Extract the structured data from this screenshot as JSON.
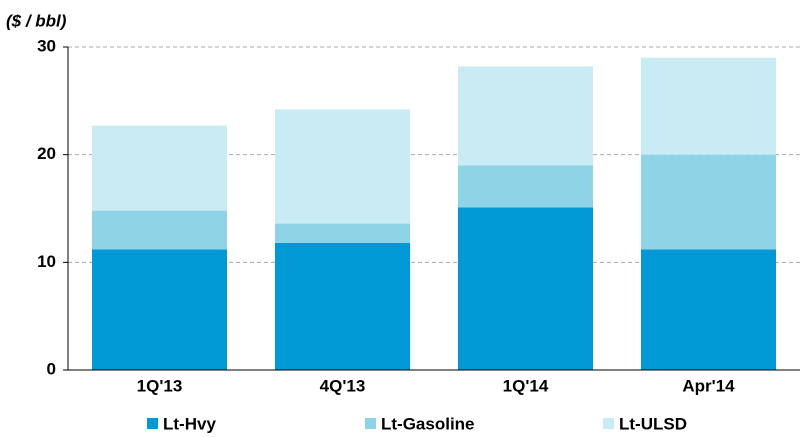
{
  "chart_data": {
    "type": "stacked_bar",
    "y_axis_label": "($ / bbl)",
    "categories": [
      "1Q'13",
      "4Q'13",
      "1Q'14",
      "Apr'14"
    ],
    "series": [
      {
        "name": "Lt-Hvy",
        "color": "#0099d6",
        "values": [
          11.2,
          11.8,
          15.1,
          11.2
        ]
      },
      {
        "name": "Lt-Gasoline",
        "color": "#8fd3e6",
        "values": [
          3.6,
          1.8,
          3.9,
          8.8
        ]
      },
      {
        "name": "Lt-ULSD",
        "color": "#c9ebf4",
        "values": [
          7.9,
          10.6,
          9.2,
          9.0
        ]
      }
    ],
    "ylim": [
      0,
      30
    ],
    "yticks": [
      0,
      10,
      20,
      30
    ],
    "grid": true,
    "legend": "bottom"
  }
}
